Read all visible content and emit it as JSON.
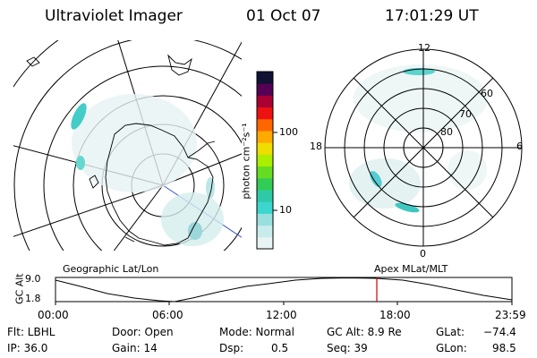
{
  "header": {
    "instrument": "Ultraviolet Imager",
    "date": "01 Oct 07",
    "time": "17:01:29 UT"
  },
  "left_panel": {
    "caption": "Geographic Lat/Lon"
  },
  "right_panel": {
    "caption": "Apex MLat/MLT",
    "mlt_labels": {
      "top": "12",
      "left": "18",
      "right": "6",
      "bottom": "0"
    },
    "mlat_labels": [
      "60",
      "70",
      "80"
    ]
  },
  "colorbar": {
    "unit": "photon cm⁻²s⁻¹",
    "tick_labels": [
      "100",
      "10"
    ],
    "colors": [
      "#e8f4f4",
      "#c8ecec",
      "#99e0dd",
      "#3cd6cf",
      "#2fc9a8",
      "#33cc55",
      "#66dd22",
      "#aaee00",
      "#eedd00",
      "#ffaa00",
      "#ff6600",
      "#ee1111",
      "#aa0033",
      "#550055",
      "#111133"
    ]
  },
  "altitude_plot": {
    "axis_label": "GC Alt",
    "y_ticks": [
      "9.0",
      "1.8"
    ],
    "x_ticks": [
      "00:00",
      "06:00",
      "12:00",
      "18:00",
      "23:59"
    ],
    "cursor_color": "#cc0000"
  },
  "status": {
    "filter": "Flt: LBHL",
    "ip": "IP: 36.0",
    "door": "Door: Open",
    "gain": "Gain: 14",
    "mode": "Mode: Normal",
    "dsp_label": "Dsp:",
    "dsp_value": "0.5",
    "gc_alt": "GC Alt: 8.9 Re",
    "seq": "Seq: 39",
    "glat_label": "GLat:",
    "glat_value": "−74.4",
    "glon_label": "GLon:",
    "glon_value": "98.5"
  }
}
